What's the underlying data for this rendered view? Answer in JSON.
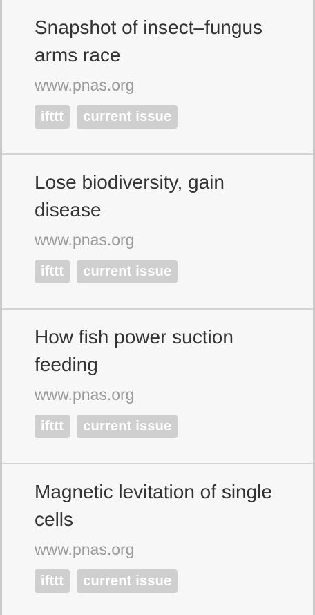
{
  "items": [
    {
      "title": "Snapshot of insect–fungus arms race",
      "source": "www.pnas.org",
      "tags": [
        "ifttt",
        "current issue"
      ]
    },
    {
      "title": "Lose biodiversity, gain disease",
      "source": "www.pnas.org",
      "tags": [
        "ifttt",
        "current issue"
      ]
    },
    {
      "title": "How fish power suction feeding",
      "source": "www.pnas.org",
      "tags": [
        "ifttt",
        "current issue"
      ]
    },
    {
      "title": "Magnetic levitation of single cells",
      "source": "www.pnas.org",
      "tags": [
        "ifttt",
        "current issue"
      ]
    }
  ],
  "colors": {
    "background": "#f7f7f7",
    "title": "#333333",
    "source": "#9a9a9a",
    "tag_background": "#cfcfcf",
    "tag_text": "#ffffff",
    "divider": "#d4d4d4"
  }
}
